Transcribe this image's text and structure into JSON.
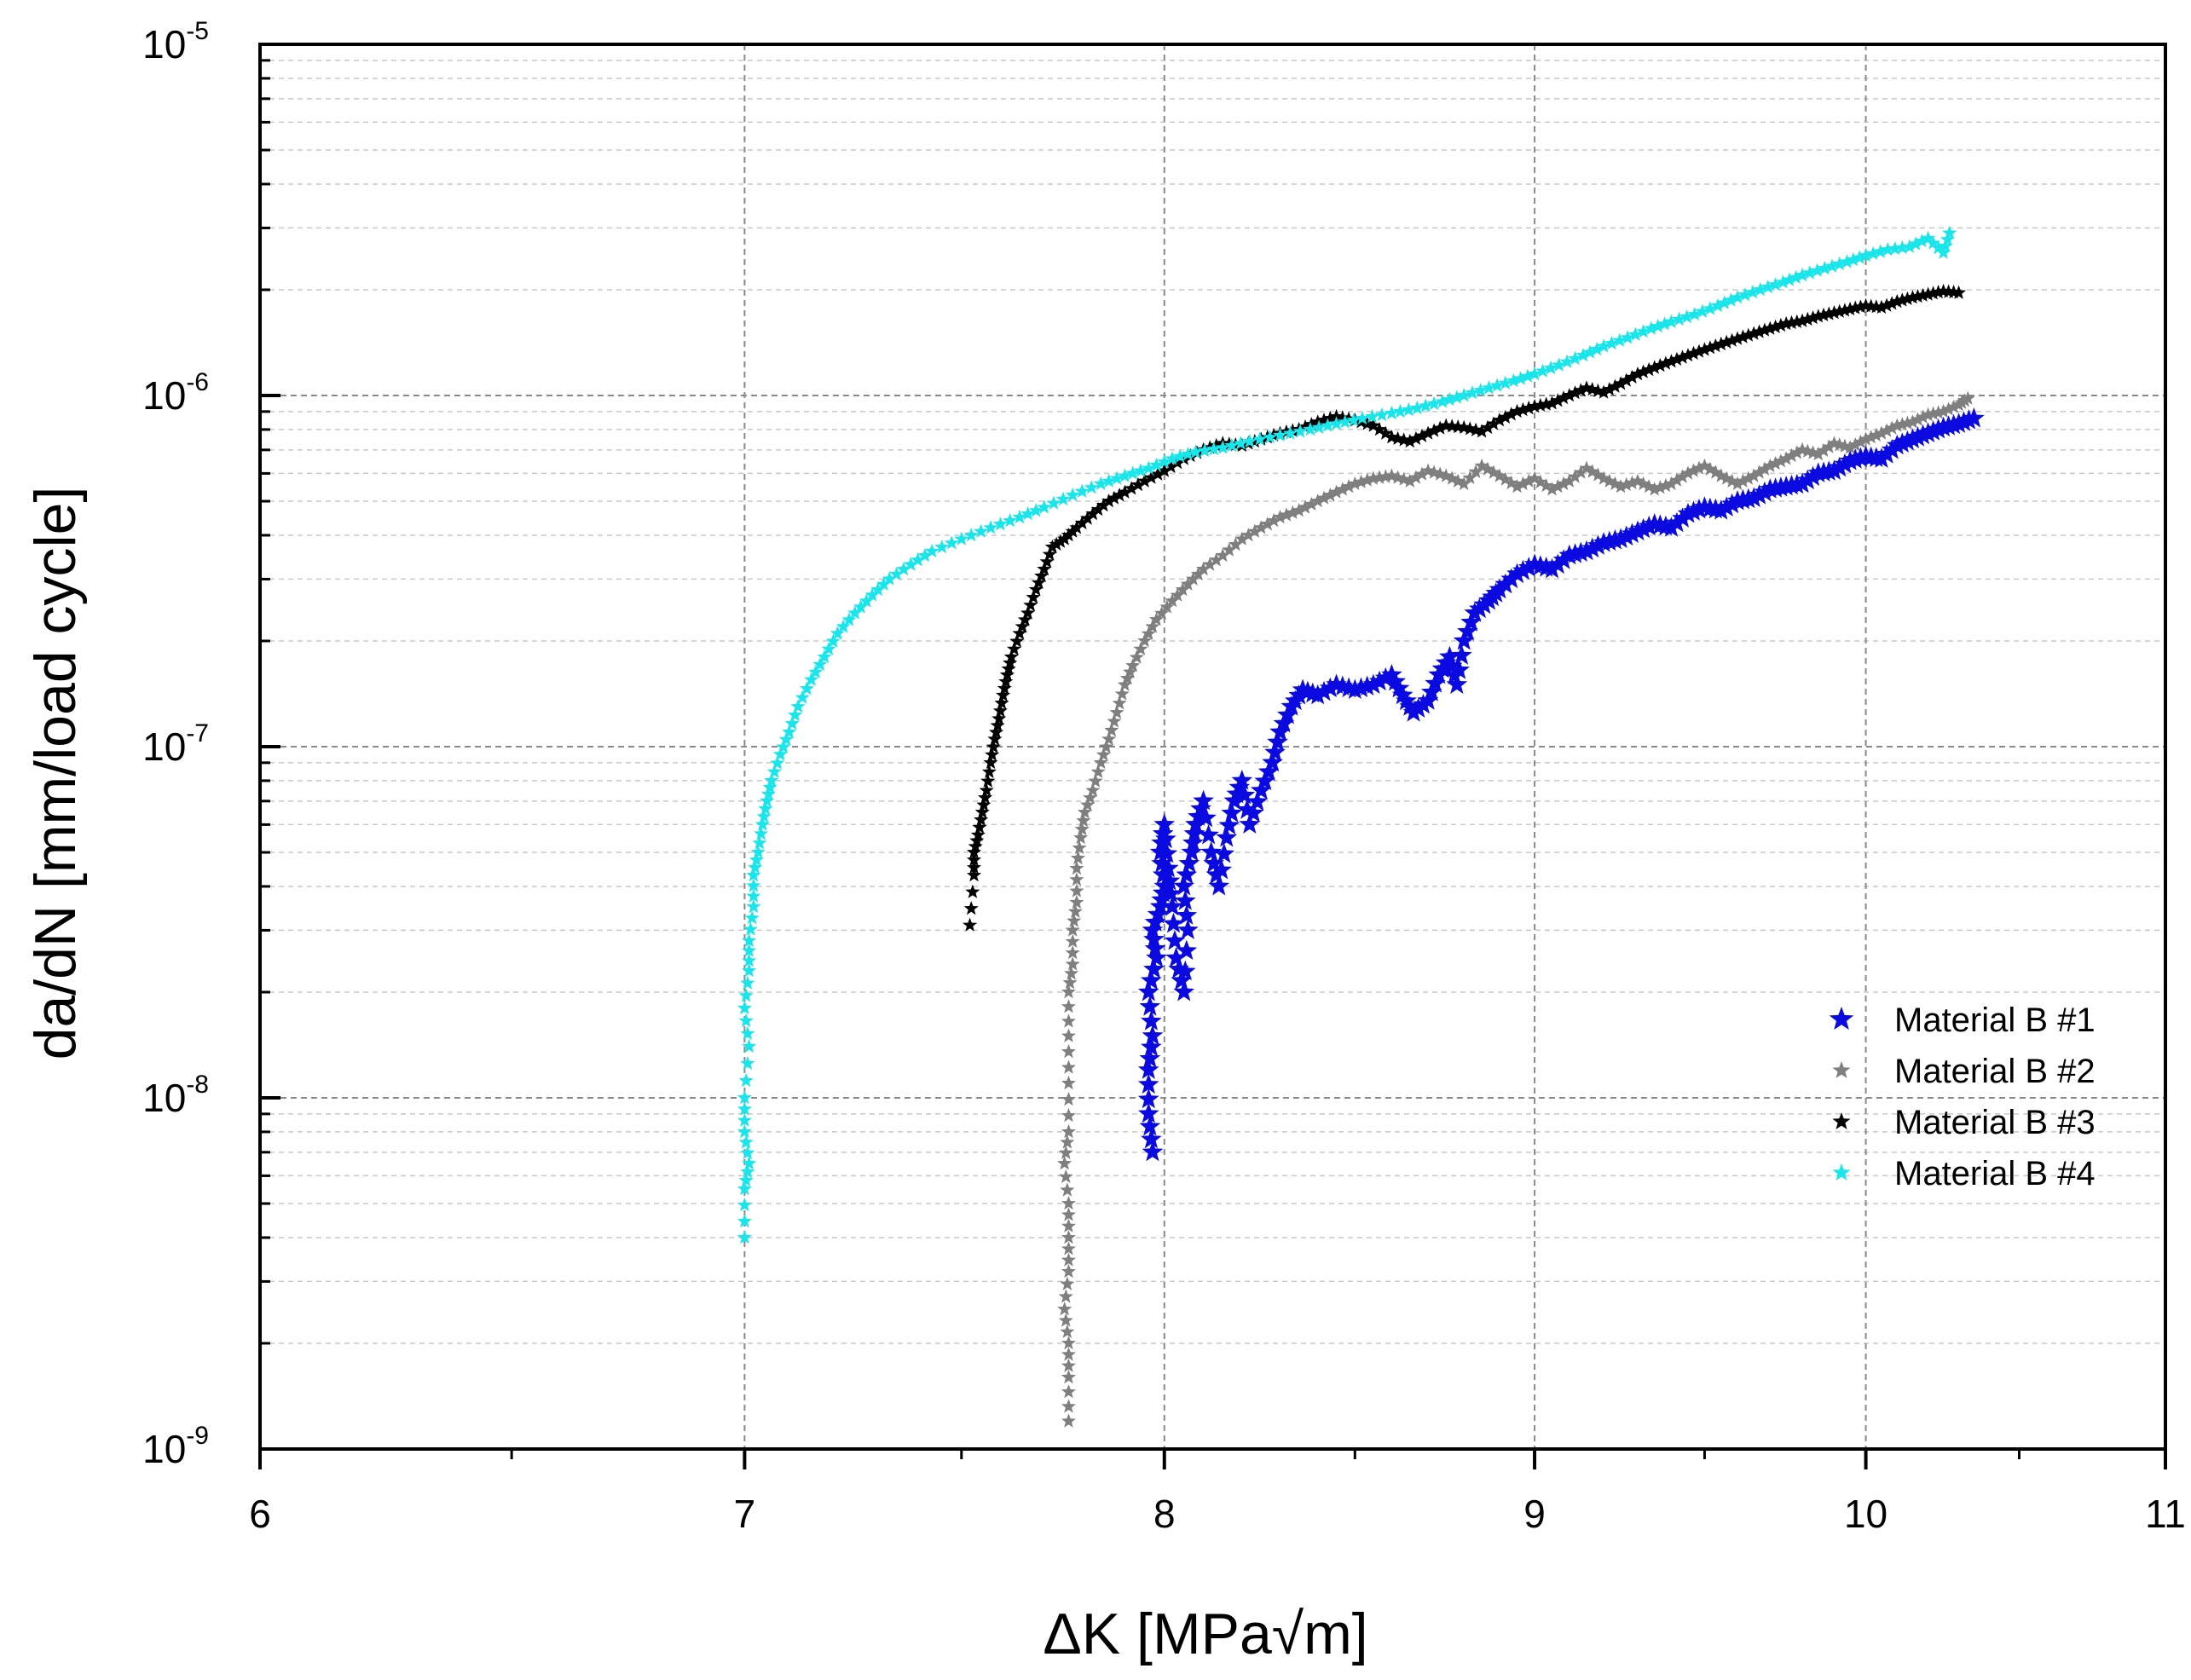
{
  "chart_data": {
    "type": "scatter",
    "title": "",
    "xlabel": "ΔK [MPa√m]",
    "ylabel": "da/dN [mm/load cycle]",
    "xscale": "log",
    "yscale": "log",
    "xlim": [
      6,
      11
    ],
    "ylim": [
      1e-09,
      1e-05
    ],
    "xticks": [
      6,
      7,
      8,
      9,
      10,
      11
    ],
    "xtick_labels": [
      "6",
      "7",
      "8",
      "9",
      "10",
      "11"
    ],
    "yticks": [
      1e-09,
      1e-08,
      1e-07,
      1e-06,
      1e-05
    ],
    "ytick_labels": [
      {
        "base": "10",
        "exp": "-9"
      },
      {
        "base": "10",
        "exp": "-8"
      },
      {
        "base": "10",
        "exp": "-7"
      },
      {
        "base": "10",
        "exp": "-6"
      },
      {
        "base": "10",
        "exp": "-5"
      }
    ],
    "grid": true,
    "legend_position": "right-middle",
    "series": [
      {
        "name": "Material B #1",
        "color": "#0a0ae0",
        "marker": "star",
        "points": [
          [
            7.97,
            7e-09
          ],
          [
            7.96,
            9e-09
          ],
          [
            7.96,
            1.2e-08
          ],
          [
            7.97,
            1.5e-08
          ],
          [
            7.96,
            2e-08
          ],
          [
            7.98,
            2.5e-08
          ],
          [
            7.97,
            3e-08
          ],
          [
            7.99,
            3.5e-08
          ],
          [
            8.0,
            4e-08
          ],
          [
            7.99,
            5e-08
          ],
          [
            8.0,
            6e-08
          ],
          [
            8.01,
            4.5e-08
          ],
          [
            8.02,
            3.5e-08
          ],
          [
            8.03,
            2.5e-08
          ],
          [
            8.05,
            2e-08
          ],
          [
            8.06,
            3e-08
          ],
          [
            8.05,
            4e-08
          ],
          [
            8.07,
            5e-08
          ],
          [
            8.08,
            6e-08
          ],
          [
            8.1,
            7e-08
          ],
          [
            8.12,
            5e-08
          ],
          [
            8.14,
            4e-08
          ],
          [
            8.16,
            5.5e-08
          ],
          [
            8.18,
            7e-08
          ],
          [
            8.2,
            8e-08
          ],
          [
            8.22,
            6e-08
          ],
          [
            8.25,
            7.5e-08
          ],
          [
            8.28,
            9e-08
          ],
          [
            8.3,
            1.1e-07
          ],
          [
            8.33,
            1.3e-07
          ],
          [
            8.36,
            1.45e-07
          ],
          [
            8.4,
            1.4e-07
          ],
          [
            8.45,
            1.5e-07
          ],
          [
            8.5,
            1.45e-07
          ],
          [
            8.55,
            1.5e-07
          ],
          [
            8.6,
            1.6e-07
          ],
          [
            8.63,
            1.4e-07
          ],
          [
            8.66,
            1.25e-07
          ],
          [
            8.7,
            1.35e-07
          ],
          [
            8.73,
            1.6e-07
          ],
          [
            8.76,
            1.8e-07
          ],
          [
            8.78,
            1.5e-07
          ],
          [
            8.8,
            2e-07
          ],
          [
            8.83,
            2.4e-07
          ],
          [
            8.87,
            2.6e-07
          ],
          [
            8.9,
            2.8e-07
          ],
          [
            8.95,
            3.1e-07
          ],
          [
            9.0,
            3.3e-07
          ],
          [
            9.05,
            3.2e-07
          ],
          [
            9.1,
            3.5e-07
          ],
          [
            9.15,
            3.6e-07
          ],
          [
            9.2,
            3.8e-07
          ],
          [
            9.25,
            3.9e-07
          ],
          [
            9.3,
            4.1e-07
          ],
          [
            9.35,
            4.3e-07
          ],
          [
            9.4,
            4.2e-07
          ],
          [
            9.45,
            4.6e-07
          ],
          [
            9.5,
            4.8e-07
          ],
          [
            9.55,
            4.7e-07
          ],
          [
            9.6,
            5e-07
          ],
          [
            9.65,
            5.1e-07
          ],
          [
            9.7,
            5.4e-07
          ],
          [
            9.75,
            5.5e-07
          ],
          [
            9.8,
            5.6e-07
          ],
          [
            9.85,
            6e-07
          ],
          [
            9.9,
            6.1e-07
          ],
          [
            9.95,
            6.5e-07
          ],
          [
            10.0,
            6.7e-07
          ],
          [
            10.05,
            6.6e-07
          ],
          [
            10.1,
            7.2e-07
          ],
          [
            10.15,
            7.5e-07
          ],
          [
            10.2,
            7.8e-07
          ],
          [
            10.25,
            8.1e-07
          ],
          [
            10.3,
            8.3e-07
          ],
          [
            10.35,
            8.6e-07
          ]
        ]
      },
      {
        "name": "Material B #2",
        "color": "#7f7f7f",
        "marker": "star",
        "points": [
          [
            7.76,
            1.2e-09
          ],
          [
            7.76,
            1.6e-09
          ],
          [
            7.76,
            2e-09
          ],
          [
            7.75,
            2.5e-09
          ],
          [
            7.76,
            3.2e-09
          ],
          [
            7.76,
            4e-09
          ],
          [
            7.76,
            5e-09
          ],
          [
            7.75,
            6.5e-09
          ],
          [
            7.76,
            8e-09
          ],
          [
            7.76,
            1.1e-08
          ],
          [
            7.76,
            1.5e-08
          ],
          [
            7.76,
            2e-08
          ],
          [
            7.77,
            2.4e-08
          ],
          [
            7.77,
            3e-08
          ],
          [
            7.78,
            3.6e-08
          ],
          [
            7.78,
            4.5e-08
          ],
          [
            7.79,
            5.5e-08
          ],
          [
            7.8,
            6.5e-08
          ],
          [
            7.82,
            7.5e-08
          ],
          [
            7.84,
            9e-08
          ],
          [
            7.86,
            1.05e-07
          ],
          [
            7.88,
            1.25e-07
          ],
          [
            7.9,
            1.5e-07
          ],
          [
            7.92,
            1.7e-07
          ],
          [
            7.95,
            2e-07
          ],
          [
            7.98,
            2.3e-07
          ],
          [
            8.02,
            2.6e-07
          ],
          [
            8.06,
            2.9e-07
          ],
          [
            8.1,
            3.2e-07
          ],
          [
            8.15,
            3.5e-07
          ],
          [
            8.2,
            3.9e-07
          ],
          [
            8.25,
            4.2e-07
          ],
          [
            8.3,
            4.5e-07
          ],
          [
            8.35,
            4.7e-07
          ],
          [
            8.4,
            5e-07
          ],
          [
            8.45,
            5.3e-07
          ],
          [
            8.5,
            5.6e-07
          ],
          [
            8.55,
            5.8e-07
          ],
          [
            8.6,
            5.9e-07
          ],
          [
            8.65,
            5.7e-07
          ],
          [
            8.7,
            6.1e-07
          ],
          [
            8.75,
            5.9e-07
          ],
          [
            8.8,
            5.6e-07
          ],
          [
            8.85,
            6.3e-07
          ],
          [
            8.9,
            5.9e-07
          ],
          [
            8.95,
            5.5e-07
          ],
          [
            9.0,
            5.8e-07
          ],
          [
            9.05,
            5.4e-07
          ],
          [
            9.1,
            5.7e-07
          ],
          [
            9.15,
            6.2e-07
          ],
          [
            9.2,
            5.8e-07
          ],
          [
            9.25,
            5.5e-07
          ],
          [
            9.3,
            5.7e-07
          ],
          [
            9.35,
            5.4e-07
          ],
          [
            9.4,
            5.6e-07
          ],
          [
            9.45,
            6e-07
          ],
          [
            9.5,
            6.3e-07
          ],
          [
            9.55,
            5.9e-07
          ],
          [
            9.6,
            5.6e-07
          ],
          [
            9.65,
            5.9e-07
          ],
          [
            9.7,
            6.3e-07
          ],
          [
            9.75,
            6.6e-07
          ],
          [
            9.8,
            7e-07
          ],
          [
            9.85,
            6.8e-07
          ],
          [
            9.9,
            7.3e-07
          ],
          [
            9.95,
            7.1e-07
          ],
          [
            10.0,
            7.5e-07
          ],
          [
            10.05,
            7.8e-07
          ],
          [
            10.1,
            8.2e-07
          ],
          [
            10.15,
            8.4e-07
          ],
          [
            10.2,
            8.8e-07
          ],
          [
            10.25,
            9e-07
          ],
          [
            10.3,
            9.4e-07
          ],
          [
            10.33,
            9.8e-07
          ]
        ]
      },
      {
        "name": "Material B #3",
        "color": "#000000",
        "marker": "star",
        "points": [
          [
            7.52,
            3.1e-08
          ],
          [
            7.53,
            4.3e-08
          ],
          [
            7.53,
            5e-08
          ],
          [
            7.54,
            5.6e-08
          ],
          [
            7.55,
            6.5e-08
          ],
          [
            7.56,
            7.5e-08
          ],
          [
            7.57,
            9e-08
          ],
          [
            7.58,
            1.05e-07
          ],
          [
            7.59,
            1.2e-07
          ],
          [
            7.6,
            1.4e-07
          ],
          [
            7.61,
            1.6e-07
          ],
          [
            7.62,
            1.8e-07
          ],
          [
            7.64,
            2.1e-07
          ],
          [
            7.66,
            2.4e-07
          ],
          [
            7.68,
            2.8e-07
          ],
          [
            7.7,
            3.2e-07
          ],
          [
            7.72,
            3.7e-07
          ],
          [
            7.75,
            3.9e-07
          ],
          [
            7.78,
            4.2e-07
          ],
          [
            7.82,
            4.6e-07
          ],
          [
            7.86,
            5e-07
          ],
          [
            7.9,
            5.3e-07
          ],
          [
            7.95,
            5.7e-07
          ],
          [
            8.0,
            6.1e-07
          ],
          [
            8.05,
            6.6e-07
          ],
          [
            8.1,
            7e-07
          ],
          [
            8.15,
            7.3e-07
          ],
          [
            8.2,
            7.2e-07
          ],
          [
            8.25,
            7.5e-07
          ],
          [
            8.3,
            7.8e-07
          ],
          [
            8.35,
            8e-07
          ],
          [
            8.4,
            8.4e-07
          ],
          [
            8.45,
            8.7e-07
          ],
          [
            8.5,
            8.5e-07
          ],
          [
            8.55,
            8.2e-07
          ],
          [
            8.6,
            7.6e-07
          ],
          [
            8.65,
            7.4e-07
          ],
          [
            8.7,
            7.8e-07
          ],
          [
            8.75,
            8.2e-07
          ],
          [
            8.8,
            8.1e-07
          ],
          [
            8.85,
            7.9e-07
          ],
          [
            8.9,
            8.5e-07
          ],
          [
            8.95,
            9e-07
          ],
          [
            9.0,
            9.3e-07
          ],
          [
            9.05,
            9.5e-07
          ],
          [
            9.1,
            1e-06
          ],
          [
            9.15,
            1.05e-06
          ],
          [
            9.2,
            1.02e-06
          ],
          [
            9.25,
            1.08e-06
          ],
          [
            9.3,
            1.15e-06
          ],
          [
            9.35,
            1.2e-06
          ],
          [
            9.4,
            1.25e-06
          ],
          [
            9.45,
            1.3e-06
          ],
          [
            9.5,
            1.35e-06
          ],
          [
            9.55,
            1.4e-06
          ],
          [
            9.6,
            1.45e-06
          ],
          [
            9.65,
            1.5e-06
          ],
          [
            9.7,
            1.55e-06
          ],
          [
            9.75,
            1.6e-06
          ],
          [
            9.8,
            1.63e-06
          ],
          [
            9.85,
            1.68e-06
          ],
          [
            9.9,
            1.72e-06
          ],
          [
            9.95,
            1.76e-06
          ],
          [
            10.0,
            1.8e-06
          ],
          [
            10.05,
            1.78e-06
          ],
          [
            10.1,
            1.85e-06
          ],
          [
            10.15,
            1.9e-06
          ],
          [
            10.2,
            1.94e-06
          ],
          [
            10.25,
            1.98e-06
          ],
          [
            10.3,
            1.96e-06
          ]
        ]
      },
      {
        "name": "Material B #4",
        "color": "#18e6ea",
        "marker": "star",
        "points": [
          [
            7.0,
            4e-09
          ],
          [
            7.0,
            5.5e-09
          ],
          [
            7.01,
            6.5e-09
          ],
          [
            7.0,
            8e-09
          ],
          [
            7.0,
            1e-08
          ],
          [
            7.01,
            1.4e-08
          ],
          [
            7.0,
            1.8e-08
          ],
          [
            7.01,
            2.3e-08
          ],
          [
            7.01,
            2.8e-08
          ],
          [
            7.02,
            3.5e-08
          ],
          [
            7.02,
            4.3e-08
          ],
          [
            7.03,
            5e-08
          ],
          [
            7.04,
            6e-08
          ],
          [
            7.05,
            7e-08
          ],
          [
            7.06,
            8e-08
          ],
          [
            7.08,
            9.5e-08
          ],
          [
            7.1,
            1.1e-07
          ],
          [
            7.12,
            1.3e-07
          ],
          [
            7.15,
            1.55e-07
          ],
          [
            7.18,
            1.8e-07
          ],
          [
            7.21,
            2.1e-07
          ],
          [
            7.25,
            2.4e-07
          ],
          [
            7.29,
            2.7e-07
          ],
          [
            7.33,
            3e-07
          ],
          [
            7.38,
            3.3e-07
          ],
          [
            7.43,
            3.6e-07
          ],
          [
            7.5,
            3.9e-07
          ],
          [
            7.57,
            4.2e-07
          ],
          [
            7.64,
            4.5e-07
          ],
          [
            7.7,
            4.8e-07
          ],
          [
            7.77,
            5.2e-07
          ],
          [
            7.84,
            5.6e-07
          ],
          [
            7.9,
            5.9e-07
          ],
          [
            7.96,
            6.2e-07
          ],
          [
            8.02,
            6.6e-07
          ],
          [
            8.08,
            6.9e-07
          ],
          [
            8.15,
            7.1e-07
          ],
          [
            8.22,
            7.4e-07
          ],
          [
            8.3,
            7.7e-07
          ],
          [
            8.38,
            8e-07
          ],
          [
            8.45,
            8.3e-07
          ],
          [
            8.52,
            8.6e-07
          ],
          [
            8.6,
            8.9e-07
          ],
          [
            8.67,
            9.2e-07
          ],
          [
            8.74,
            9.6e-07
          ],
          [
            8.8,
            1e-06
          ],
          [
            8.87,
            1.05e-06
          ],
          [
            8.94,
            1.1e-06
          ],
          [
            9.0,
            1.15e-06
          ],
          [
            9.07,
            1.22e-06
          ],
          [
            9.14,
            1.3e-06
          ],
          [
            9.2,
            1.38e-06
          ],
          [
            9.27,
            1.46e-06
          ],
          [
            9.34,
            1.55e-06
          ],
          [
            9.4,
            1.62e-06
          ],
          [
            9.47,
            1.7e-06
          ],
          [
            9.54,
            1.8e-06
          ],
          [
            9.6,
            1.9e-06
          ],
          [
            9.67,
            2e-06
          ],
          [
            9.74,
            2.1e-06
          ],
          [
            9.8,
            2.2e-06
          ],
          [
            9.87,
            2.3e-06
          ],
          [
            9.94,
            2.4e-06
          ],
          [
            10.0,
            2.5e-06
          ],
          [
            10.07,
            2.6e-06
          ],
          [
            10.14,
            2.65e-06
          ],
          [
            10.2,
            2.8e-06
          ],
          [
            10.25,
            2.55e-06
          ],
          [
            10.27,
            2.9e-06
          ]
        ]
      }
    ]
  }
}
